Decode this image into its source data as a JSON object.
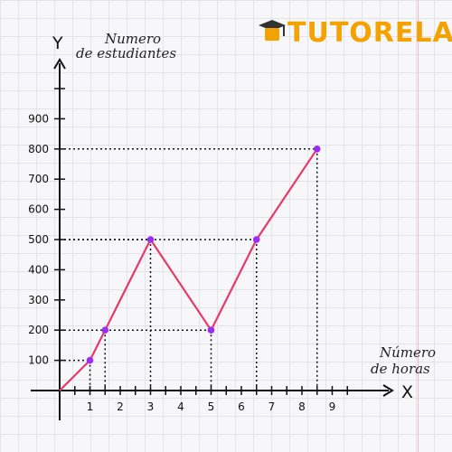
{
  "brand": {
    "name": "TUTORELA",
    "color": "#f4a200"
  },
  "chart_data": {
    "type": "line",
    "ylabel_line1": "Numero",
    "ylabel_line2": "de estudiantes",
    "xlabel_line1": "Número",
    "xlabel_line2": "de horas",
    "x_axis_letter": "X",
    "y_axis_letter": "Y",
    "x_ticks": [
      1,
      2,
      3,
      4,
      5,
      6,
      7,
      8,
      9
    ],
    "y_ticks": [
      100,
      200,
      300,
      400,
      500,
      600,
      700,
      800,
      900
    ],
    "xlim": [
      0,
      10
    ],
    "ylim": [
      0,
      1000
    ],
    "points": [
      {
        "x": 0,
        "y": 0
      },
      {
        "x": 1,
        "y": 100
      },
      {
        "x": 1.5,
        "y": 200
      },
      {
        "x": 3,
        "y": 500
      },
      {
        "x": 5,
        "y": 200
      },
      {
        "x": 6.5,
        "y": 500
      },
      {
        "x": 8.5,
        "y": 800
      }
    ],
    "line_color": "#e8386a",
    "point_color": "#9b2cf2",
    "grid": false,
    "guide_lines": "dotted"
  }
}
